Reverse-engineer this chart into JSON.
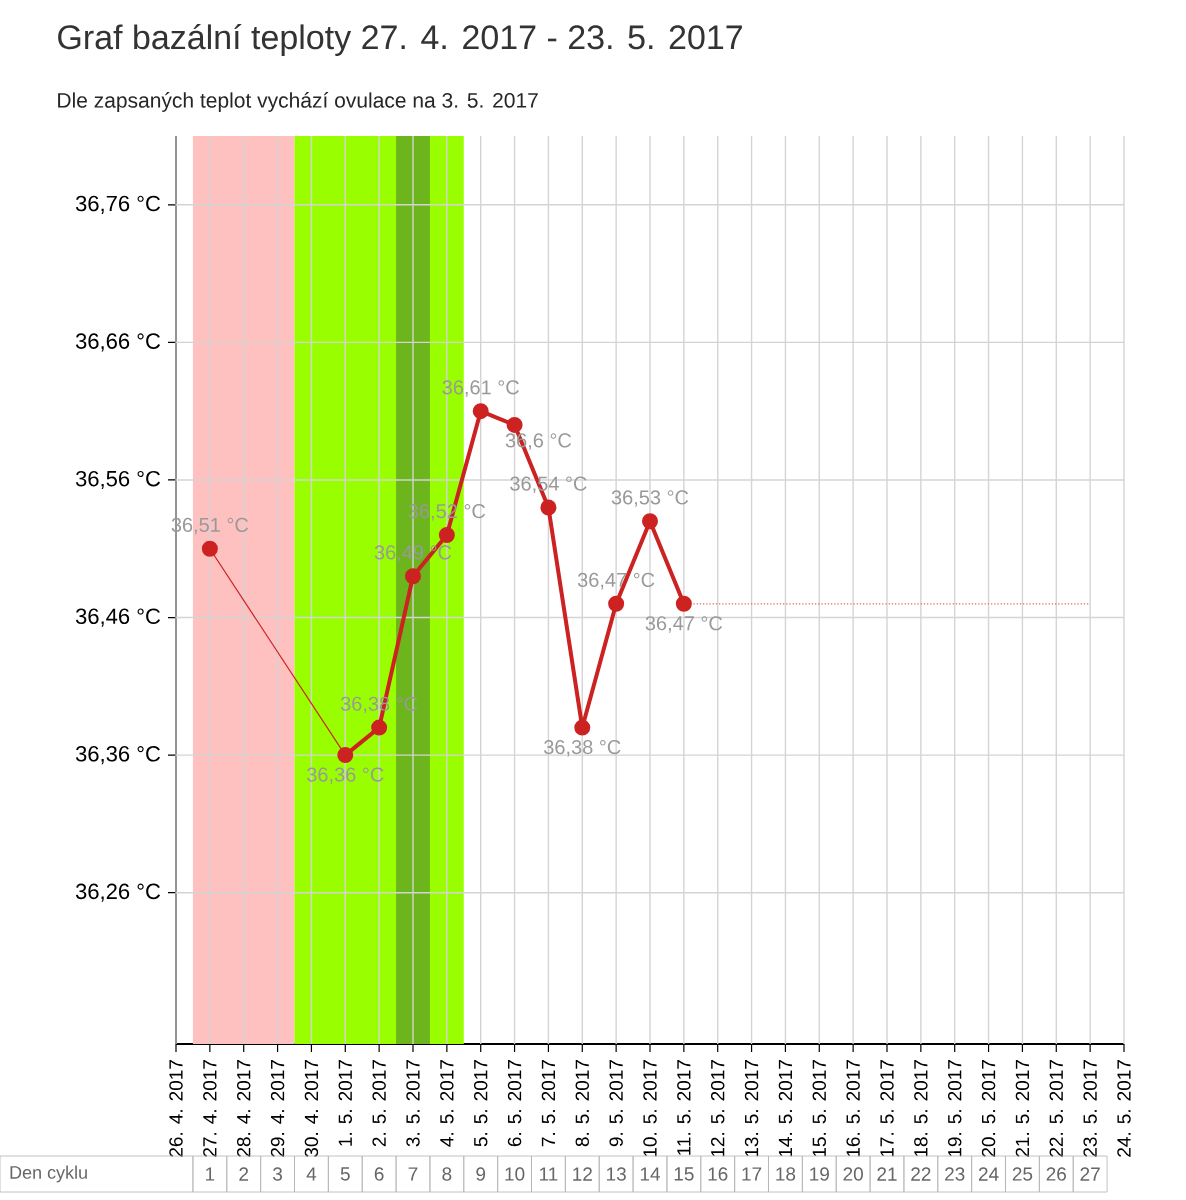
{
  "chart_data": {
    "type": "line",
    "title": "Graf bazální teploty 27. 4. 2017 - 23. 5. 2017",
    "subtitle": "Dle zapsaných teplot vychází ovulace na 3. 5. 2017",
    "xlim": [
      "2017-04-26",
      "2017-05-24"
    ],
    "xticks": [
      {
        "value": "2017-04-26",
        "label": "26. 4. 2017"
      },
      {
        "value": "2017-04-27",
        "label": "27. 4. 2017"
      },
      {
        "value": "2017-04-28",
        "label": "28. 4. 2017"
      },
      {
        "value": "2017-04-29",
        "label": "29. 4. 2017"
      },
      {
        "value": "2017-04-30",
        "label": "30. 4. 2017"
      },
      {
        "value": "2017-05-01",
        "label": "1. 5. 2017"
      },
      {
        "value": "2017-05-02",
        "label": "2. 5. 2017"
      },
      {
        "value": "2017-05-03",
        "label": "3. 5. 2017"
      },
      {
        "value": "2017-05-04",
        "label": "4. 5. 2017"
      },
      {
        "value": "2017-05-05",
        "label": "5. 5. 2017"
      },
      {
        "value": "2017-05-06",
        "label": "6. 5. 2017"
      },
      {
        "value": "2017-05-07",
        "label": "7. 5. 2017"
      },
      {
        "value": "2017-05-08",
        "label": "8. 5. 2017"
      },
      {
        "value": "2017-05-09",
        "label": "9. 5. 2017"
      },
      {
        "value": "2017-05-10",
        "label": "10. 5. 2017"
      },
      {
        "value": "2017-05-11",
        "label": "11. 5. 2017"
      },
      {
        "value": "2017-05-12",
        "label": "12. 5. 2017"
      },
      {
        "value": "2017-05-13",
        "label": "13. 5. 2017"
      },
      {
        "value": "2017-05-14",
        "label": "14. 5. 2017"
      },
      {
        "value": "2017-05-15",
        "label": "15. 5. 2017"
      },
      {
        "value": "2017-05-16",
        "label": "16. 5. 2017"
      },
      {
        "value": "2017-05-17",
        "label": "17. 5. 2017"
      },
      {
        "value": "2017-05-18",
        "label": "18. 5. 2017"
      },
      {
        "value": "2017-05-19",
        "label": "19. 5. 2017"
      },
      {
        "value": "2017-05-20",
        "label": "20. 5. 2017"
      },
      {
        "value": "2017-05-21",
        "label": "21. 5. 2017"
      },
      {
        "value": "2017-05-22",
        "label": "22. 5. 2017"
      },
      {
        "value": "2017-05-23",
        "label": "23. 5. 2017"
      },
      {
        "value": "2017-05-24",
        "label": "24. 5. 2017"
      }
    ],
    "x2label": "Den cyklu",
    "x2lim": [
      "2017-04-26",
      "2017-05-24"
    ],
    "x2ticks": [
      {
        "value": "2017-04-27",
        "label": "1"
      },
      {
        "value": "2017-04-28",
        "label": "2"
      },
      {
        "value": "2017-04-29",
        "label": "3"
      },
      {
        "value": "2017-04-30",
        "label": "4"
      },
      {
        "value": "2017-05-01",
        "label": "5"
      },
      {
        "value": "2017-05-02",
        "label": "6"
      },
      {
        "value": "2017-05-03",
        "label": "7"
      },
      {
        "value": "2017-05-04",
        "label": "8"
      },
      {
        "value": "2017-05-05",
        "label": "9"
      },
      {
        "value": "2017-05-06",
        "label": "10"
      },
      {
        "value": "2017-05-07",
        "label": "11"
      },
      {
        "value": "2017-05-08",
        "label": "12"
      },
      {
        "value": "2017-05-09",
        "label": "13"
      },
      {
        "value": "2017-05-10",
        "label": "14"
      },
      {
        "value": "2017-05-11",
        "label": "15"
      },
      {
        "value": "2017-05-12",
        "label": "16"
      },
      {
        "value": "2017-05-13",
        "label": "17"
      },
      {
        "value": "2017-05-14",
        "label": "18"
      },
      {
        "value": "2017-05-15",
        "label": "19"
      },
      {
        "value": "2017-05-16",
        "label": "20"
      },
      {
        "value": "2017-05-17",
        "label": "21"
      },
      {
        "value": "2017-05-18",
        "label": "22"
      },
      {
        "value": "2017-05-19",
        "label": "23"
      },
      {
        "value": "2017-05-20",
        "label": "24"
      },
      {
        "value": "2017-05-21",
        "label": "25"
      },
      {
        "value": "2017-05-22",
        "label": "26"
      },
      {
        "value": "2017-05-23",
        "label": "27"
      }
    ],
    "ylim": [
      36.15,
      36.81
    ],
    "yticks": [
      {
        "value": 36.26,
        "label": "36,26 °C"
      },
      {
        "value": 36.36,
        "label": "36,36 °C"
      },
      {
        "value": 36.46,
        "label": "36,46 °C"
      },
      {
        "value": 36.56,
        "label": "36,56 °C"
      },
      {
        "value": 36.66,
        "label": "36,66 °C"
      },
      {
        "value": 36.76,
        "label": "36,76 °C"
      }
    ],
    "grid": true,
    "bands": [
      {
        "axis": "x",
        "from": "2017-04-26T12:00",
        "to": "2017-04-29T12:00",
        "color": "#ffc0c0"
      },
      {
        "axis": "x",
        "from": "2017-04-29T12:00",
        "to": "2017-05-04T12:00",
        "color": "#99ff00"
      },
      {
        "axis": "x",
        "from": "2017-05-02T12:00",
        "to": "2017-05-03T12:00",
        "color": "#6cb51c"
      }
    ],
    "series": [
      {
        "color": "#cc2222",
        "marker": "circle",
        "line_style": "solid",
        "x": [
          "2017-04-27",
          "2017-05-01",
          "2017-05-02",
          "2017-05-03",
          "2017-05-04",
          "2017-05-05",
          "2017-05-06",
          "2017-05-07",
          "2017-05-08",
          "2017-05-09",
          "2017-05-10",
          "2017-05-11"
        ],
        "values": [
          36.51,
          36.36,
          36.38,
          36.49,
          36.52,
          36.61,
          36.6,
          36.54,
          36.38,
          36.47,
          36.53,
          36.47
        ],
        "value_labels": [
          "36,51 °C",
          "36,36 °C",
          "36,38 °C",
          "36,49 °C",
          "36,52 °C",
          "36,61 °C",
          "36,6 °C",
          "36,54 °C",
          "36,38 °C",
          "36,47 °C",
          "36,53 °C",
          "36,47 °C"
        ]
      },
      {
        "color": "#e06060",
        "marker": "none",
        "line_style": "dotted",
        "x": [
          "2017-05-11",
          "2017-05-12",
          "2017-05-13",
          "2017-05-14",
          "2017-05-15",
          "2017-05-16",
          "2017-05-17",
          "2017-05-18",
          "2017-05-19",
          "2017-05-20",
          "2017-05-21",
          "2017-05-22",
          "2017-05-23"
        ],
        "values": [
          36.47,
          36.47,
          36.47,
          36.47,
          36.47,
          36.47,
          36.47,
          36.47,
          36.47,
          36.47,
          36.47,
          36.47,
          36.47
        ]
      }
    ]
  }
}
